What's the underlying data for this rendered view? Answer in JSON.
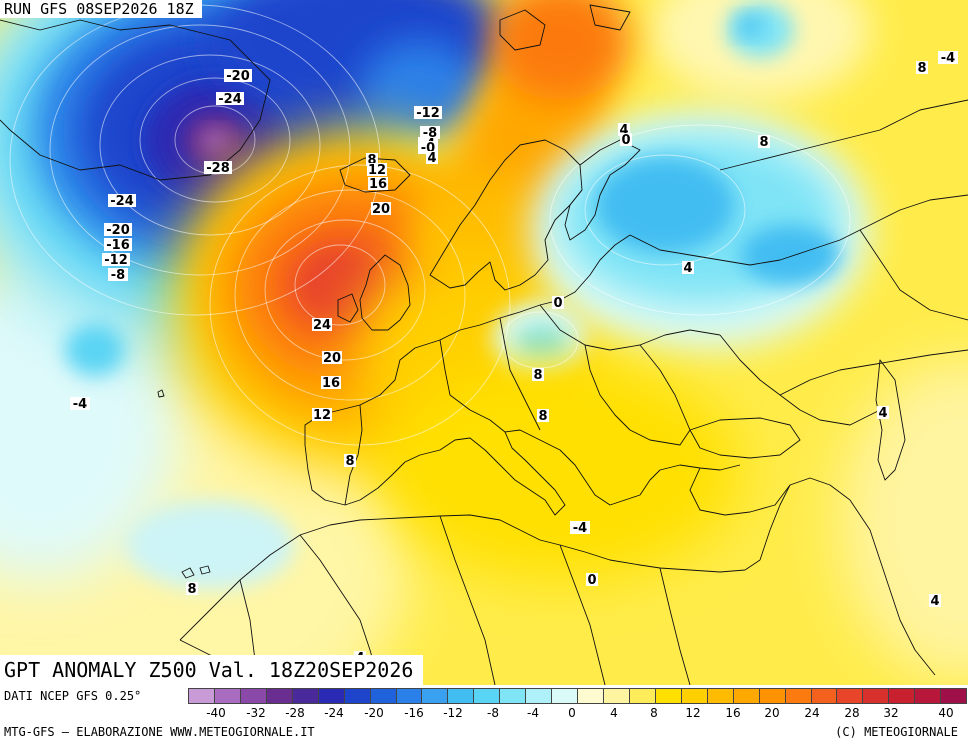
{
  "run_label": "RUN GFS 08SEP2026 18Z",
  "title": "GPT ANOMALY Z500 Val. 18Z20SEP2026",
  "source": "DATI NCEP GFS 0.25°",
  "credit_left": "MTG-GFS – ELABORAZIONE WWW.METEOGIORNALE.IT",
  "credit_right": "(C) METEOGIORNALE",
  "legend": {
    "colors": [
      "#c89ad6",
      "#a86cc0",
      "#8a48a8",
      "#6a2e90",
      "#4a2a9a",
      "#2a2ab4",
      "#1e44cc",
      "#1f62dc",
      "#2a80e8",
      "#3aa0f0",
      "#42bdf2",
      "#5ad4f4",
      "#7fe4f6",
      "#b0f0f8",
      "#dafaf8",
      "#fffbd0",
      "#fff5a0",
      "#ffec5a",
      "#ffe000",
      "#ffcf00",
      "#ffbb00",
      "#ffa800",
      "#ff9200",
      "#fc7a10",
      "#f4601e",
      "#e8442a",
      "#d8302c",
      "#c8202e",
      "#b8163a",
      "#a01048"
    ],
    "ticks": [
      "-40",
      "-32",
      "-28",
      "-24",
      "-20",
      "-16",
      "-12",
      "-8",
      "-4",
      "0",
      "4",
      "8",
      "12",
      "16",
      "20",
      "24",
      "28",
      "32",
      "40"
    ]
  },
  "contour_labels": [
    "-20",
    "-24",
    "-28",
    "-24",
    "-20",
    "-16",
    "-12",
    "-8",
    "-12",
    "-8",
    "-4",
    "-0",
    "4",
    "4",
    "0",
    "8",
    "8",
    "12",
    "16",
    "20",
    "24",
    "20",
    "16",
    "12",
    "8",
    "-4",
    "4",
    "0",
    "8",
    "8",
    "8",
    "4",
    "-4",
    "0",
    "4",
    "8",
    "4",
    "-4"
  ]
}
